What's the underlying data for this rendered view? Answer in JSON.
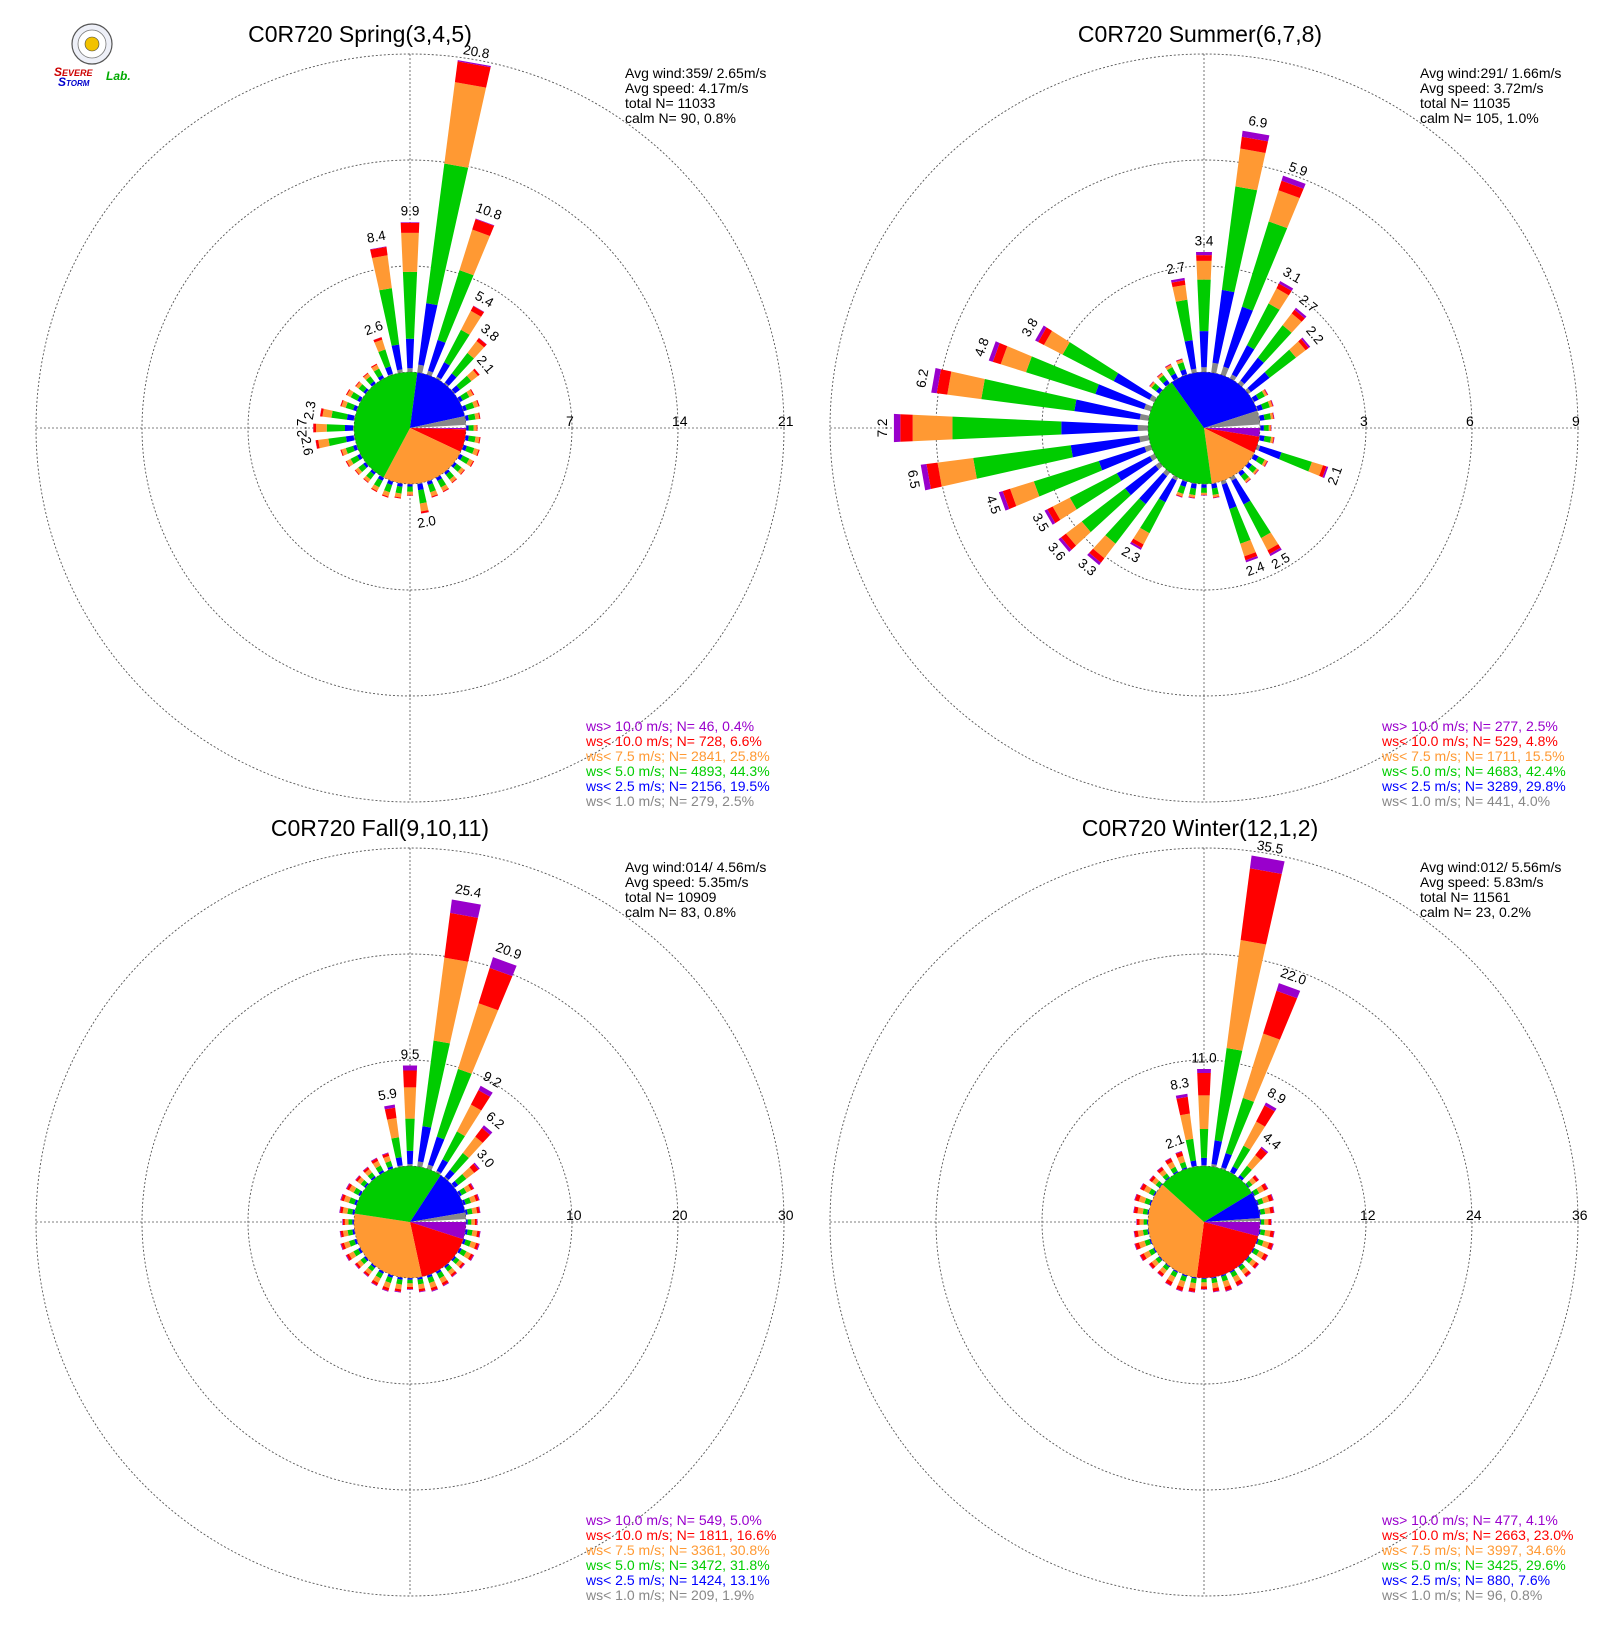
{
  "logo": {
    "text_parts": [
      "S",
      "EVERE",
      "S",
      "TORM",
      "Lab."
    ]
  },
  "chart_data": [
    {
      "type": "windrose",
      "title": "C0R720 Spring(3,4,5)",
      "rmax": 21,
      "ring_labels": [
        "7",
        "14",
        "21"
      ],
      "info": [
        "Avg wind:359/ 2.65m/s",
        "Avg speed: 4.17m/s",
        "total N=      11033",
        "calm N=     90,   0.8%"
      ],
      "pie": [
        0.4,
        6.6,
        25.8,
        44.3,
        19.5,
        2.5
      ],
      "directions": [
        {
          "dir": 10,
          "total": 20.8
        },
        {
          "dir": 20,
          "total": 10.8
        },
        {
          "dir": 0,
          "total": 9.9
        },
        {
          "dir": 350,
          "total": 8.4
        },
        {
          "dir": 30,
          "total": 5.4
        },
        {
          "dir": 40,
          "total": 3.8
        },
        {
          "dir": 340,
          "total": 2.6
        },
        {
          "dir": 50,
          "total": 2.1
        },
        {
          "dir": 280,
          "total": 2.3
        },
        {
          "dir": 270,
          "total": 2.7
        },
        {
          "dir": 260,
          "total": 2.6
        },
        {
          "dir": 170,
          "total": 2.0
        }
      ],
      "labels": [
        {
          "dir": 10,
          "text": "20.8"
        },
        {
          "dir": 20,
          "text": "10.8"
        },
        {
          "dir": 0,
          "text": "9.9"
        },
        {
          "dir": 350,
          "text": "8.4"
        },
        {
          "dir": 30,
          "text": "5.4"
        },
        {
          "dir": 40,
          "text": "3.8"
        },
        {
          "dir": 340,
          "text": "2.6"
        },
        {
          "dir": 50,
          "text": "2.1"
        },
        {
          "dir": 280,
          "text": "2.3"
        },
        {
          "dir": 270,
          "text": "2.7"
        },
        {
          "dir": 260,
          "text": "2.6"
        },
        {
          "dir": 170,
          "text": "2.0"
        }
      ],
      "legend": [
        {
          "label": "ws> 10.0 m/s; N=",
          "n": "   46",
          "pct": "  0.4%"
        },
        {
          "label": "ws< 10.0 m/s; N=",
          "n": "  728",
          "pct": "  6.6%"
        },
        {
          "label": "ws<  7.5 m/s; N=",
          "n": " 2841",
          "pct": " 25.8%"
        },
        {
          "label": "ws<  5.0 m/s; N=",
          "n": " 4893",
          "pct": " 44.3%"
        },
        {
          "label": "ws<  2.5 m/s; N=",
          "n": " 2156",
          "pct": " 19.5%"
        },
        {
          "label": "ws<  1.0 m/s; N=",
          "n": "  279",
          "pct": "  2.5%"
        }
      ]
    },
    {
      "type": "windrose",
      "title": "C0R720 Summer(6,7,8)",
      "rmax": 9,
      "ring_labels": [
        "3",
        "6",
        "9"
      ],
      "info": [
        "Avg wind:291/ 1.66m/s",
        "Avg speed: 3.72m/s",
        "total N=      11035",
        "calm N=    105,   1.0%"
      ],
      "pie": [
        2.5,
        4.8,
        15.5,
        42.4,
        29.8,
        4.0
      ],
      "directions": [
        {
          "dir": 270,
          "total": 7.2
        },
        {
          "dir": 260,
          "total": 6.5
        },
        {
          "dir": 280,
          "total": 6.2
        },
        {
          "dir": 10,
          "total": 6.9
        },
        {
          "dir": 20,
          "total": 5.9
        },
        {
          "dir": 290,
          "total": 4.8
        },
        {
          "dir": 300,
          "total": 3.8
        },
        {
          "dir": 250,
          "total": 4.5
        },
        {
          "dir": 0,
          "total": 3.4
        },
        {
          "dir": 30,
          "total": 3.1
        },
        {
          "dir": 350,
          "total": 2.7
        },
        {
          "dir": 40,
          "total": 2.7
        },
        {
          "dir": 240,
          "total": 3.5
        },
        {
          "dir": 230,
          "total": 3.6
        },
        {
          "dir": 220,
          "total": 3.3
        },
        {
          "dir": 50,
          "total": 2.2
        },
        {
          "dir": 210,
          "total": 2.3
        },
        {
          "dir": 150,
          "total": 2.5
        },
        {
          "dir": 160,
          "total": 2.4
        },
        {
          "dir": 110,
          "total": 2.1
        }
      ],
      "labels": [
        {
          "dir": 270,
          "text": "7.2"
        },
        {
          "dir": 260,
          "text": "6.5"
        },
        {
          "dir": 280,
          "text": "6.2"
        },
        {
          "dir": 10,
          "text": "6.9"
        },
        {
          "dir": 20,
          "text": "5.9"
        },
        {
          "dir": 290,
          "text": "4.8"
        },
        {
          "dir": 300,
          "text": "3.8"
        },
        {
          "dir": 250,
          "text": "4.5"
        },
        {
          "dir": 0,
          "text": "3.4"
        },
        {
          "dir": 30,
          "text": "3.1"
        },
        {
          "dir": 350,
          "text": "2.7"
        },
        {
          "dir": 40,
          "text": "2.7"
        },
        {
          "dir": 240,
          "text": "3.5"
        },
        {
          "dir": 230,
          "text": "3.6"
        },
        {
          "dir": 220,
          "text": "3.3"
        },
        {
          "dir": 50,
          "text": "2.2"
        },
        {
          "dir": 210,
          "text": "2.3"
        },
        {
          "dir": 150,
          "text": "2.5"
        },
        {
          "dir": 160,
          "text": "2.4"
        },
        {
          "dir": 110,
          "text": "2.1"
        }
      ],
      "legend": [
        {
          "label": "ws> 10.0 m/s; N=",
          "n": "  277",
          "pct": "  2.5%"
        },
        {
          "label": "ws< 10.0 m/s; N=",
          "n": "  529",
          "pct": "  4.8%"
        },
        {
          "label": "ws<  7.5 m/s; N=",
          "n": " 1711",
          "pct": " 15.5%"
        },
        {
          "label": "ws<  5.0 m/s; N=",
          "n": " 4683",
          "pct": " 42.4%"
        },
        {
          "label": "ws<  2.5 m/s; N=",
          "n": " 3289",
          "pct": " 29.8%"
        },
        {
          "label": "ws<  1.0 m/s; N=",
          "n": "  441",
          "pct": "  4.0%"
        }
      ]
    },
    {
      "type": "windrose",
      "title": "C0R720 Fall(9,10,11)",
      "rmax": 30,
      "ring_labels": [
        "10",
        "20",
        "30"
      ],
      "info": [
        "Avg wind:014/ 4.56m/s",
        "Avg speed: 5.35m/s",
        "total N=      10909",
        "calm N=     83,   0.8%"
      ],
      "pie": [
        5.0,
        16.6,
        30.8,
        31.8,
        13.1,
        1.9
      ],
      "directions": [
        {
          "dir": 10,
          "total": 25.4
        },
        {
          "dir": 20,
          "total": 20.9
        },
        {
          "dir": 0,
          "total": 9.5
        },
        {
          "dir": 30,
          "total": 9.2
        },
        {
          "dir": 40,
          "total": 6.2
        },
        {
          "dir": 350,
          "total": 5.9
        },
        {
          "dir": 50,
          "total": 3.0
        }
      ],
      "labels": [
        {
          "dir": 10,
          "text": "25.4"
        },
        {
          "dir": 20,
          "text": "20.9"
        },
        {
          "dir": 0,
          "text": "9.5"
        },
        {
          "dir": 30,
          "text": "9.2"
        },
        {
          "dir": 40,
          "text": "6.2"
        },
        {
          "dir": 350,
          "text": "5.9"
        },
        {
          "dir": 50,
          "text": "3.0"
        }
      ],
      "legend": [
        {
          "label": "ws> 10.0 m/s; N=",
          "n": "  549",
          "pct": "  5.0%"
        },
        {
          "label": "ws< 10.0 m/s; N=",
          "n": " 1811",
          "pct": " 16.6%"
        },
        {
          "label": "ws<  7.5 m/s; N=",
          "n": " 3361",
          "pct": " 30.8%"
        },
        {
          "label": "ws<  5.0 m/s; N=",
          "n": " 3472",
          "pct": " 31.8%"
        },
        {
          "label": "ws<  2.5 m/s; N=",
          "n": " 1424",
          "pct": " 13.1%"
        },
        {
          "label": "ws<  1.0 m/s; N=",
          "n": "  209",
          "pct": "  1.9%"
        }
      ]
    },
    {
      "type": "windrose",
      "title": "C0R720 Winter(12,1,2)",
      "rmax": 36,
      "ring_labels": [
        "12",
        "24",
        "36"
      ],
      "info": [
        "Avg wind:012/ 5.56m/s",
        "Avg speed: 5.83m/s",
        "total N=      11561",
        "calm N=     23,   0.2%"
      ],
      "pie": [
        4.1,
        23.0,
        34.6,
        29.6,
        7.6,
        0.8
      ],
      "directions": [
        {
          "dir": 10,
          "total": 35.5
        },
        {
          "dir": 20,
          "total": 22.0
        },
        {
          "dir": 0,
          "total": 11.0
        },
        {
          "dir": 30,
          "total": 8.9
        },
        {
          "dir": 350,
          "total": 8.3
        },
        {
          "dir": 40,
          "total": 4.4
        },
        {
          "dir": 340,
          "total": 2.1
        }
      ],
      "labels": [
        {
          "dir": 10,
          "text": "35.5"
        },
        {
          "dir": 20,
          "text": "22.0"
        },
        {
          "dir": 0,
          "text": "11.0"
        },
        {
          "dir": 30,
          "text": "8.9"
        },
        {
          "dir": 350,
          "text": "8.3"
        },
        {
          "dir": 40,
          "text": "4.4"
        },
        {
          "dir": 340,
          "text": "2.1"
        }
      ],
      "legend": [
        {
          "label": "ws> 10.0 m/s; N=",
          "n": "  477",
          "pct": "  4.1%"
        },
        {
          "label": "ws< 10.0 m/s; N=",
          "n": " 2663",
          "pct": " 23.0%"
        },
        {
          "label": "ws<  7.5 m/s; N=",
          "n": " 3997",
          "pct": " 34.6%"
        },
        {
          "label": "ws<  5.0 m/s; N=",
          "n": " 3425",
          "pct": " 29.6%"
        },
        {
          "label": "ws<  2.5 m/s; N=",
          "n": "  880",
          "pct": "  7.6%"
        },
        {
          "label": "ws<  1.0 m/s; N=",
          "n": "   96",
          "pct": "  0.8%"
        }
      ]
    }
  ],
  "colors": {
    "classes": [
      "#9900cc",
      "#ff0000",
      "#ff9933",
      "#00cc00",
      "#0000ff",
      "#888888"
    ],
    "logo_s": "#cc0000",
    "logo_storm": "#0000cc",
    "logo_lab": "#00aa00"
  }
}
